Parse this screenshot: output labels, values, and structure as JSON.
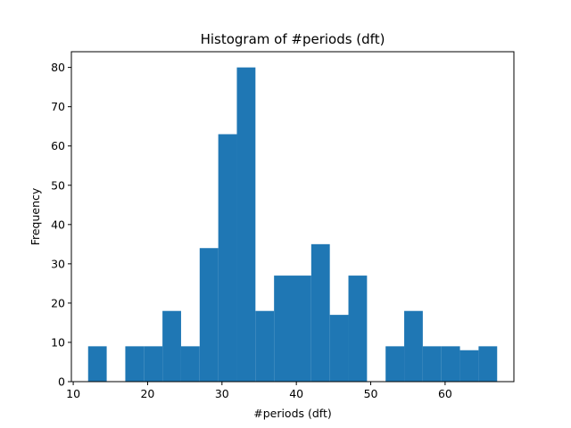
{
  "chart_data": {
    "type": "bar",
    "title": "Histogram of #periods (dft)",
    "xlabel": "#periods (dft)",
    "ylabel": "Frequency",
    "xlim": [
      9.75,
      69.25
    ],
    "ylim": [
      0,
      84
    ],
    "xticks": [
      10,
      20,
      30,
      40,
      50,
      60
    ],
    "yticks": [
      0,
      10,
      20,
      30,
      40,
      50,
      60,
      70,
      80
    ],
    "grid": false,
    "color": "#1f77b4",
    "bins": [
      {
        "x0": 12.0,
        "x1": 14.5,
        "value": 9
      },
      {
        "x0": 14.5,
        "x1": 17.0,
        "value": 0
      },
      {
        "x0": 17.0,
        "x1": 19.5,
        "value": 9
      },
      {
        "x0": 19.5,
        "x1": 22.0,
        "value": 9
      },
      {
        "x0": 22.0,
        "x1": 24.5,
        "value": 18
      },
      {
        "x0": 24.5,
        "x1": 27.0,
        "value": 9
      },
      {
        "x0": 27.0,
        "x1": 29.5,
        "value": 34
      },
      {
        "x0": 29.5,
        "x1": 32.0,
        "value": 63
      },
      {
        "x0": 32.0,
        "x1": 34.5,
        "value": 80
      },
      {
        "x0": 34.5,
        "x1": 37.0,
        "value": 18
      },
      {
        "x0": 37.0,
        "x1": 39.5,
        "value": 27
      },
      {
        "x0": 39.5,
        "x1": 42.0,
        "value": 27
      },
      {
        "x0": 42.0,
        "x1": 44.5,
        "value": 35
      },
      {
        "x0": 44.5,
        "x1": 47.0,
        "value": 17
      },
      {
        "x0": 47.0,
        "x1": 49.5,
        "value": 27
      },
      {
        "x0": 49.5,
        "x1": 52.0,
        "value": 0
      },
      {
        "x0": 52.0,
        "x1": 54.5,
        "value": 9
      },
      {
        "x0": 54.5,
        "x1": 57.0,
        "value": 18
      },
      {
        "x0": 57.0,
        "x1": 59.5,
        "value": 9
      },
      {
        "x0": 59.5,
        "x1": 62.0,
        "value": 9
      },
      {
        "x0": 62.0,
        "x1": 64.5,
        "value": 8
      },
      {
        "x0": 64.5,
        "x1": 67.0,
        "value": 9
      }
    ]
  }
}
